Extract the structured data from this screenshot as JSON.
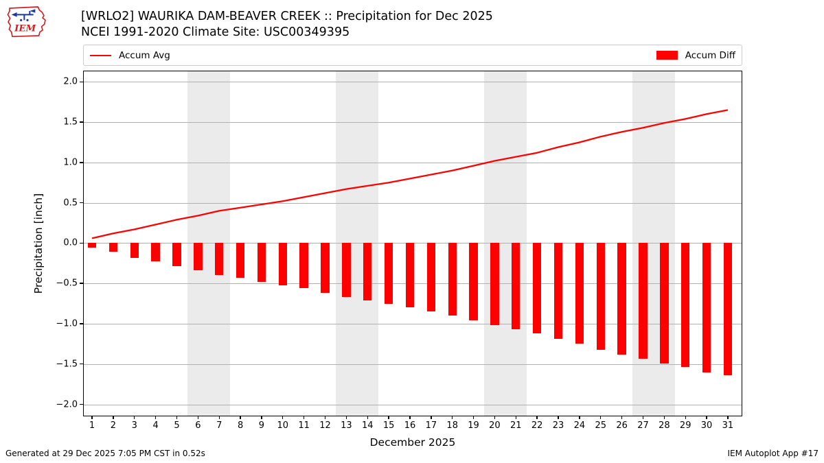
{
  "header": {
    "title_line1": "[WRLO2] WAURIKA DAM-BEAVER CREEK :: Precipitation for Dec 2025",
    "title_line2": "NCEI 1991-2020 Climate Site: USC00349395",
    "logo_text": "IEM"
  },
  "legend": {
    "avg_label": "Accum Avg",
    "diff_label": "Accum Diff"
  },
  "footer": {
    "left": "Generated at 29 Dec 2025 7:05 PM CST in 0.52s",
    "right": "IEM Autoplot App #17"
  },
  "colors": {
    "series_red": "#ff0000",
    "weekend_band": "#ebebeb",
    "gridline": "#b0b0b0",
    "logo_red": "#cc2222",
    "logo_blue": "#1a3a9c"
  },
  "chart_data": {
    "type": "line+bar",
    "xlabel": "December 2025",
    "ylabel": "Precipitation [inch]",
    "x": [
      1,
      2,
      3,
      4,
      5,
      6,
      7,
      8,
      9,
      10,
      11,
      12,
      13,
      14,
      15,
      16,
      17,
      18,
      19,
      20,
      21,
      22,
      23,
      24,
      25,
      26,
      27,
      28,
      29,
      30,
      31
    ],
    "series": [
      {
        "name": "Accum Avg",
        "type": "line",
        "color": "#ff0000",
        "values": [
          0.06,
          0.12,
          0.17,
          0.23,
          0.29,
          0.34,
          0.4,
          0.44,
          0.48,
          0.52,
          0.57,
          0.62,
          0.67,
          0.71,
          0.75,
          0.8,
          0.85,
          0.9,
          0.96,
          1.02,
          1.07,
          1.12,
          1.19,
          1.25,
          1.32,
          1.38,
          1.43,
          1.49,
          1.54,
          1.6,
          1.65
        ]
      },
      {
        "name": "Accum Diff",
        "type": "bar",
        "color": "#ff0000",
        "values": [
          -0.06,
          -0.11,
          -0.18,
          -0.23,
          -0.29,
          -0.34,
          -0.4,
          -0.43,
          -0.48,
          -0.52,
          -0.56,
          -0.62,
          -0.67,
          -0.71,
          -0.75,
          -0.8,
          -0.85,
          -0.9,
          -0.96,
          -1.02,
          -1.07,
          -1.12,
          -1.19,
          -1.25,
          -1.32,
          -1.38,
          -1.43,
          -1.49,
          -1.54,
          -1.6,
          -1.64
        ]
      }
    ],
    "xlim": [
      0.61,
      31.65
    ],
    "ylim": [
      -2.14,
      2.13
    ],
    "yticks": [
      2.0,
      1.5,
      1.0,
      0.5,
      0.0,
      -0.5,
      -1.0,
      -1.5,
      -2.0
    ],
    "ytick_labels": [
      "2.0",
      "1.5",
      "1.0",
      "0.5",
      "0.0",
      "−0.5",
      "−1.0",
      "−1.5",
      "−2.0"
    ],
    "xtick_labels": [
      "1",
      "2",
      "3",
      "4",
      "5",
      "6",
      "7",
      "8",
      "9",
      "10",
      "11",
      "12",
      "13",
      "14",
      "15",
      "16",
      "17",
      "18",
      "19",
      "20",
      "21",
      "22",
      "23",
      "24",
      "25",
      "26",
      "27",
      "28",
      "29",
      "30",
      "31"
    ],
    "weekend_bands": [
      [
        5.5,
        7.5
      ],
      [
        12.5,
        14.5
      ],
      [
        19.5,
        21.5
      ],
      [
        26.5,
        28.5
      ]
    ],
    "bar_width_days": 0.4,
    "grid": "horizontal",
    "legend_position": "top, expanded, two columns"
  }
}
